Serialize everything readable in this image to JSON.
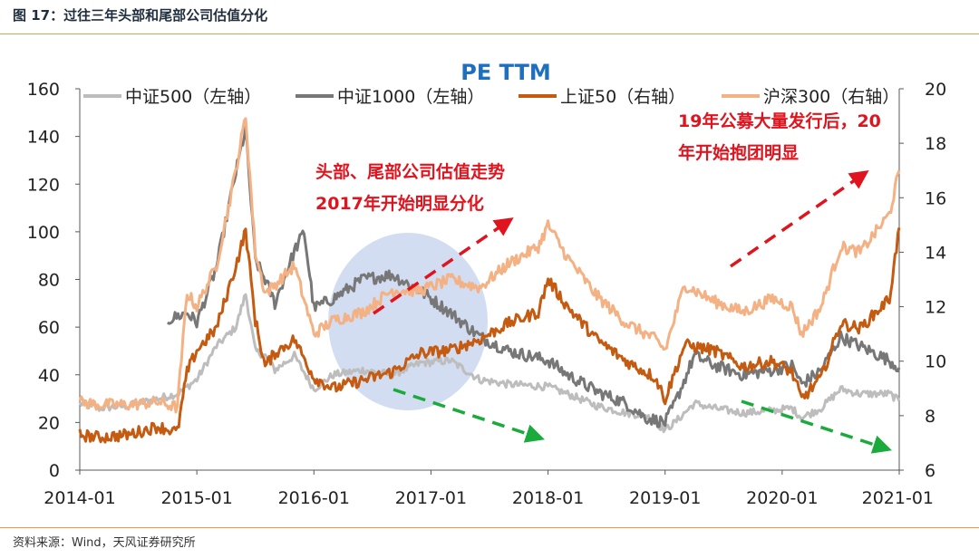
{
  "figure_title": "图 17：过往三年头部和尾部公司估值分化",
  "source": "资料来源：Wind，天风证券研究所",
  "colors": {
    "csi500": "#bdbdbd",
    "csi1000": "#777777",
    "sse50": "#c55a11",
    "csi300": "#f4b183",
    "highlight_circle": "#b4c7e7",
    "red_arrow": "#e0141e",
    "green_arrow": "#1aab3c",
    "rule": "#e59a4c"
  },
  "chart_data": {
    "type": "line",
    "title": "PE TTM",
    "x_ticks": [
      "2014-01",
      "2015-01",
      "2016-01",
      "2017-01",
      "2018-01",
      "2019-01",
      "2020-01",
      "2021-01"
    ],
    "xlim": [
      "2014-01",
      "2021-01"
    ],
    "y_left": {
      "lim": [
        0,
        160
      ],
      "ticks": [
        "0",
        "20",
        "40",
        "60",
        "80",
        "100",
        "120",
        "140",
        "160"
      ]
    },
    "y_right": {
      "lim": [
        6,
        20
      ],
      "ticks": [
        "6",
        "8",
        "10",
        "12",
        "14",
        "16",
        "18",
        "20"
      ]
    },
    "legend_position": "top",
    "grid": false,
    "series": [
      {
        "name": "中证500（左轴）",
        "axis": "left",
        "color_key": "csi500",
        "points": [
          [
            "2014-01",
            28
          ],
          [
            "2014-03",
            26
          ],
          [
            "2014-06",
            27
          ],
          [
            "2014-09",
            30
          ],
          [
            "2014-11",
            32
          ],
          [
            "2015-01",
            38
          ],
          [
            "2015-03",
            52
          ],
          [
            "2015-05",
            60
          ],
          [
            "2015-06",
            74
          ],
          [
            "2015-07",
            50
          ],
          [
            "2015-08",
            48
          ],
          [
            "2015-09",
            42
          ],
          [
            "2015-11",
            48
          ],
          [
            "2016-01",
            34
          ],
          [
            "2016-03",
            40
          ],
          [
            "2016-06",
            42
          ],
          [
            "2016-09",
            40
          ],
          [
            "2016-12",
            45
          ],
          [
            "2017-03",
            46
          ],
          [
            "2017-06",
            38
          ],
          [
            "2017-09",
            36
          ],
          [
            "2018-01",
            35
          ],
          [
            "2018-03",
            32
          ],
          [
            "2018-06",
            27
          ],
          [
            "2018-09",
            24
          ],
          [
            "2018-11",
            23
          ],
          [
            "2019-01",
            17
          ],
          [
            "2019-02",
            20
          ],
          [
            "2019-04",
            28
          ],
          [
            "2019-06",
            26
          ],
          [
            "2019-09",
            24
          ],
          [
            "2019-12",
            25
          ],
          [
            "2020-02",
            26
          ],
          [
            "2020-03",
            22
          ],
          [
            "2020-05",
            26
          ],
          [
            "2020-07",
            34
          ],
          [
            "2020-09",
            32
          ],
          [
            "2020-12",
            32
          ],
          [
            "2021-01",
            29
          ]
        ]
      },
      {
        "name": "中证1000（左轴）",
        "axis": "left",
        "color_key": "csi1000",
        "points": [
          [
            "2014-10",
            63
          ],
          [
            "2014-12",
            66
          ],
          [
            "2015-01",
            62
          ],
          [
            "2015-03",
            85
          ],
          [
            "2015-05",
            125
          ],
          [
            "2015-06",
            143
          ],
          [
            "2015-07",
            88
          ],
          [
            "2015-08",
            80
          ],
          [
            "2015-09",
            70
          ],
          [
            "2015-11",
            92
          ],
          [
            "2015-12",
            100
          ],
          [
            "2016-01",
            68
          ],
          [
            "2016-03",
            72
          ],
          [
            "2016-06",
            80
          ],
          [
            "2016-09",
            82
          ],
          [
            "2016-12",
            75
          ],
          [
            "2017-03",
            66
          ],
          [
            "2017-06",
            56
          ],
          [
            "2017-09",
            50
          ],
          [
            "2018-01",
            46
          ],
          [
            "2018-03",
            40
          ],
          [
            "2018-06",
            33
          ],
          [
            "2018-09",
            28
          ],
          [
            "2018-11",
            22
          ],
          [
            "2019-01",
            20
          ],
          [
            "2019-02",
            28
          ],
          [
            "2019-04",
            48
          ],
          [
            "2019-06",
            44
          ],
          [
            "2019-09",
            40
          ],
          [
            "2019-12",
            42
          ],
          [
            "2020-02",
            44
          ],
          [
            "2020-03",
            36
          ],
          [
            "2020-05",
            42
          ],
          [
            "2020-07",
            56
          ],
          [
            "2020-09",
            52
          ],
          [
            "2020-12",
            46
          ],
          [
            "2021-01",
            43
          ]
        ]
      },
      {
        "name": "上证50（右轴）",
        "axis": "right",
        "color_key": "sse50",
        "points": [
          [
            "2014-01",
            7.3
          ],
          [
            "2014-03",
            7.2
          ],
          [
            "2014-06",
            7.3
          ],
          [
            "2014-09",
            7.6
          ],
          [
            "2014-11",
            7.4
          ],
          [
            "2014-12",
            9.6
          ],
          [
            "2015-01",
            10.4
          ],
          [
            "2015-03",
            11.2
          ],
          [
            "2015-05",
            13.5
          ],
          [
            "2015-06",
            14.8
          ],
          [
            "2015-07",
            11.5
          ],
          [
            "2015-08",
            9.8
          ],
          [
            "2015-09",
            10.3
          ],
          [
            "2015-11",
            10.8
          ],
          [
            "2016-01",
            9.4
          ],
          [
            "2016-03",
            9.0
          ],
          [
            "2016-06",
            9.3
          ],
          [
            "2016-09",
            9.6
          ],
          [
            "2016-12",
            10.3
          ],
          [
            "2017-03",
            10.4
          ],
          [
            "2017-06",
            10.8
          ],
          [
            "2017-09",
            11.4
          ],
          [
            "2017-12",
            11.8
          ],
          [
            "2018-01",
            13.0
          ],
          [
            "2018-03",
            12.0
          ],
          [
            "2018-06",
            10.8
          ],
          [
            "2018-09",
            10.0
          ],
          [
            "2018-12",
            9.4
          ],
          [
            "2019-01",
            8.6
          ],
          [
            "2019-03",
            10.6
          ],
          [
            "2019-06",
            10.4
          ],
          [
            "2019-09",
            9.8
          ],
          [
            "2019-12",
            10.0
          ],
          [
            "2020-02",
            9.6
          ],
          [
            "2020-03",
            8.6
          ],
          [
            "2020-05",
            9.4
          ],
          [
            "2020-07",
            11.4
          ],
          [
            "2020-09",
            11.2
          ],
          [
            "2020-12",
            12.3
          ],
          [
            "2021-01",
            14.9
          ]
        ]
      },
      {
        "name": "沪深300（右轴）",
        "axis": "right",
        "color_key": "csi300",
        "points": [
          [
            "2014-01",
            8.5
          ],
          [
            "2014-03",
            8.4
          ],
          [
            "2014-06",
            8.4
          ],
          [
            "2014-09",
            8.5
          ],
          [
            "2014-11",
            8.3
          ],
          [
            "2014-12",
            12.5
          ],
          [
            "2015-01",
            12.0
          ],
          [
            "2015-03",
            13.5
          ],
          [
            "2015-05",
            17.0
          ],
          [
            "2015-06",
            19.0
          ],
          [
            "2015-07",
            14.0
          ],
          [
            "2015-08",
            12.5
          ],
          [
            "2015-09",
            12.8
          ],
          [
            "2015-11",
            13.5
          ],
          [
            "2016-01",
            11.0
          ],
          [
            "2016-03",
            11.5
          ],
          [
            "2016-06",
            11.8
          ],
          [
            "2016-09",
            12.6
          ],
          [
            "2016-12",
            12.6
          ],
          [
            "2017-03",
            13.0
          ],
          [
            "2017-06",
            12.7
          ],
          [
            "2017-09",
            13.6
          ],
          [
            "2017-12",
            14.2
          ],
          [
            "2018-01",
            15.0
          ],
          [
            "2018-03",
            13.8
          ],
          [
            "2018-06",
            12.4
          ],
          [
            "2018-09",
            11.4
          ],
          [
            "2018-12",
            10.8
          ],
          [
            "2019-01",
            10.4
          ],
          [
            "2019-03",
            12.8
          ],
          [
            "2019-06",
            12.2
          ],
          [
            "2019-09",
            11.8
          ],
          [
            "2019-12",
            12.3
          ],
          [
            "2020-02",
            12.0
          ],
          [
            "2020-03",
            11.0
          ],
          [
            "2020-05",
            12.0
          ],
          [
            "2020-07",
            14.2
          ],
          [
            "2020-09",
            14.0
          ],
          [
            "2020-12",
            15.4
          ],
          [
            "2021-01",
            17.0
          ]
        ]
      }
    ],
    "annotations": [
      {
        "lines": [
          "头部、尾部公司估值走势",
          "2017年开始明显分化"
        ]
      },
      {
        "lines": [
          "19年公募大量发行后，20",
          "年开始抱团明显"
        ]
      }
    ]
  }
}
